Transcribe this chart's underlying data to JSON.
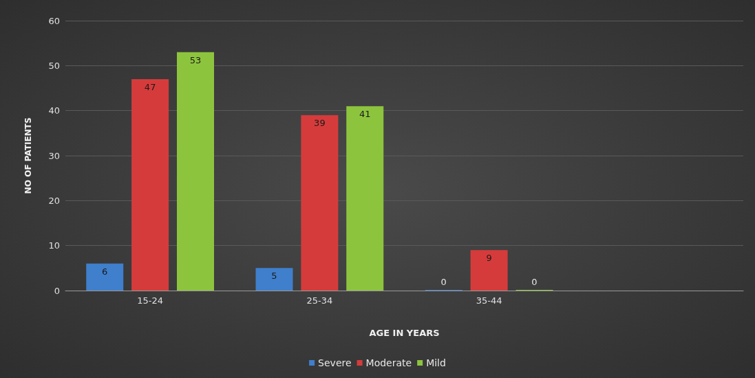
{
  "chart_data": {
    "type": "bar",
    "xlabel": "AGE IN YEARS",
    "ylabel": "NO OF PATIENTS",
    "categories": [
      "15-24",
      "25-34",
      "35-44",
      null
    ],
    "series": [
      {
        "name": "Severe",
        "color": "#3f7fcc",
        "values": [
          6,
          5,
          0,
          null
        ]
      },
      {
        "name": "Moderate",
        "color": "#d63b3b",
        "values": [
          47,
          39,
          9,
          null
        ]
      },
      {
        "name": "Mild",
        "color": "#8dc43e",
        "values": [
          53,
          41,
          0,
          null
        ]
      }
    ],
    "ylim": [
      0,
      60
    ],
    "yticks": [
      0,
      10,
      20,
      30,
      40,
      50,
      60
    ],
    "grid": "y",
    "legend": "bottom",
    "data_labels": true
  }
}
